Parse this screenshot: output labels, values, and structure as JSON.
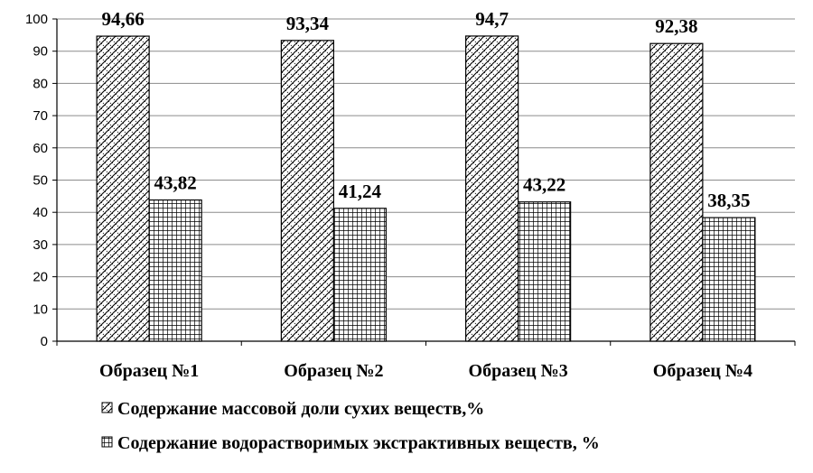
{
  "chart_data": {
    "type": "bar",
    "categories": [
      "Образец №1",
      "Образец №2",
      "Образец №3",
      "Образец №4"
    ],
    "series": [
      {
        "name": "Содержание массовой доли сухих веществ,%",
        "values": [
          94.66,
          93.34,
          94.7,
          92.38
        ],
        "labels": [
          "94,66",
          "93,34",
          "94,7",
          "92,38"
        ],
        "pattern": "diagonal-cross-hatch"
      },
      {
        "name": "Содержание водорастворимых экстрактивных веществ, %",
        "values": [
          43.82,
          41.24,
          43.22,
          38.35
        ],
        "labels": [
          "43,82",
          "41,24",
          "43,22",
          "38,35"
        ],
        "pattern": "grid"
      }
    ],
    "ylim": [
      0,
      100
    ],
    "yticks": [
      0,
      10,
      20,
      30,
      40,
      50,
      60,
      70,
      80,
      90,
      100
    ],
    "grid": true,
    "legend_position": "bottom",
    "xlabel": "",
    "ylabel": ""
  }
}
